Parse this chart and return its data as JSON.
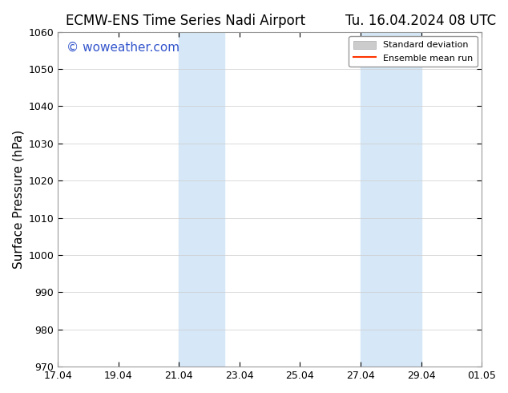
{
  "title_left": "ECMW-ENS Time Series Nadi Airport",
  "title_right": "Tu. 16.04.2024 08 UTC",
  "ylabel": "Surface Pressure (hPa)",
  "ylim": [
    970,
    1060
  ],
  "yticks": [
    970,
    980,
    990,
    1000,
    1010,
    1020,
    1030,
    1040,
    1050,
    1060
  ],
  "xlim_start": 0,
  "xlim_end": 14,
  "xtick_labels": [
    "17.04",
    "19.04",
    "21.04",
    "23.04",
    "25.04",
    "27.04",
    "29.04",
    "01.05"
  ],
  "xtick_positions": [
    0,
    2,
    4,
    6,
    8,
    10,
    12,
    14
  ],
  "shaded_bands": [
    {
      "x_start": 4,
      "x_end": 5.5
    },
    {
      "x_start": 10,
      "x_end": 12
    }
  ],
  "shade_color": "#d6e8f7",
  "shade_color2": "#ddeeff",
  "watermark_text": "© woweather.com",
  "watermark_color": "#3355cc",
  "watermark_fontsize": 11,
  "legend_std_dev_label": "Standard deviation",
  "legend_mean_label": "Ensemble mean run",
  "legend_mean_color": "#ff3300",
  "legend_std_color": "#cccccc",
  "bg_color": "#ffffff",
  "plot_bg_color": "#ffffff",
  "title_fontsize": 12,
  "ylabel_fontsize": 11,
  "tick_fontsize": 9,
  "grid_color": "#cccccc"
}
